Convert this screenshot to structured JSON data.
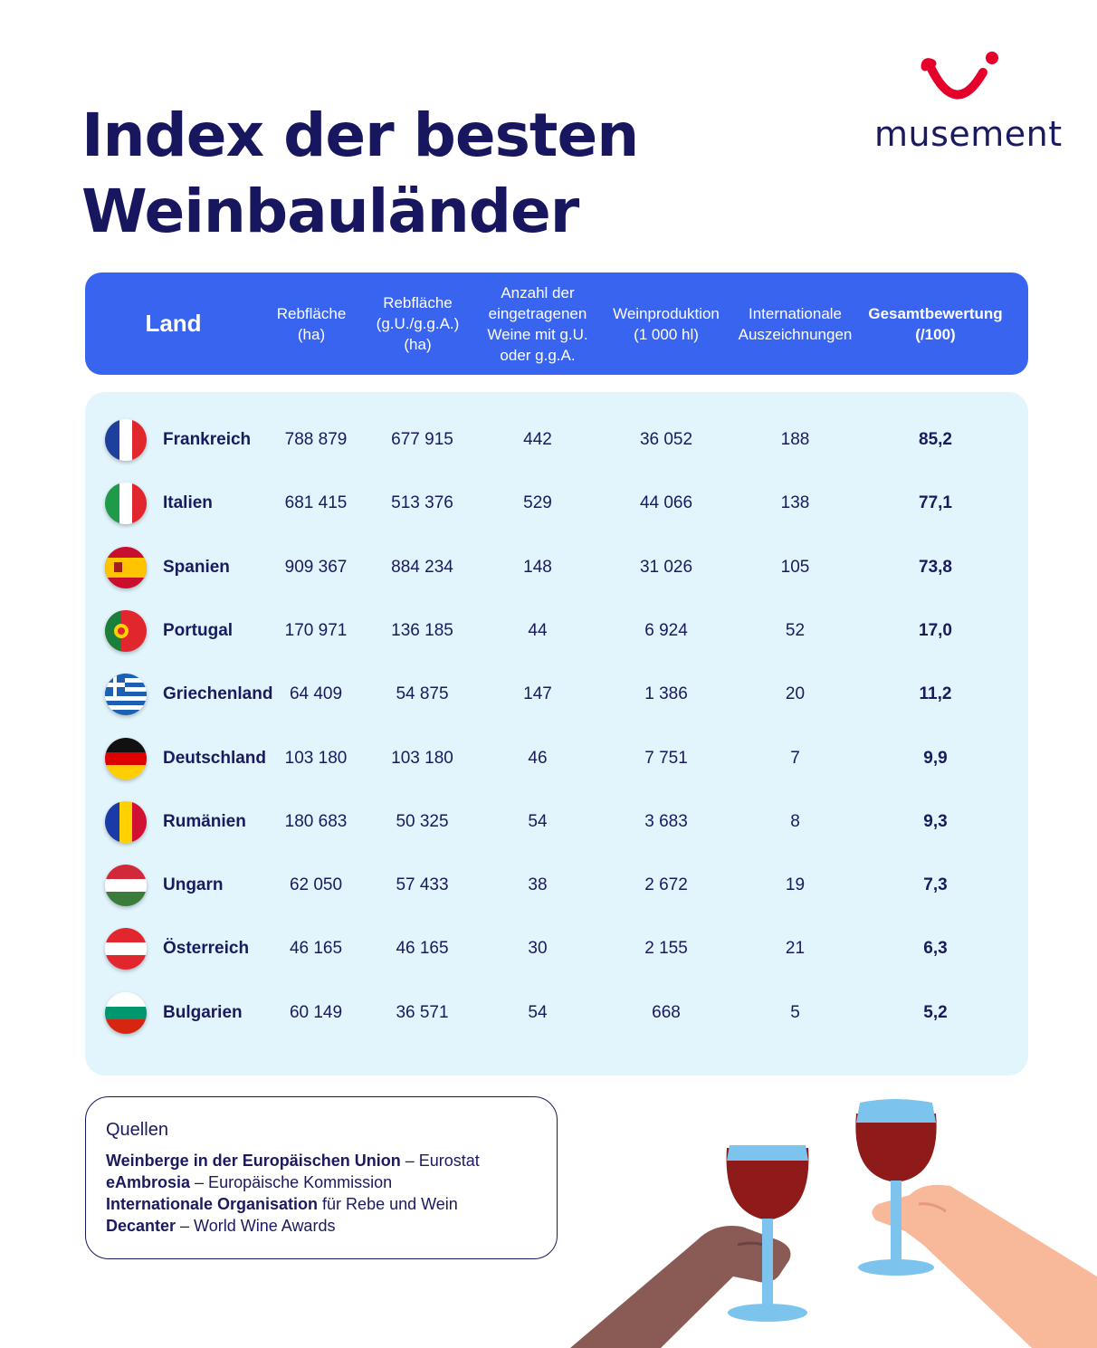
{
  "title": {
    "line1": "Index der besten",
    "line2": "Weinbauländer"
  },
  "logo": {
    "text": "musement",
    "colors": {
      "mark": "#e4002b",
      "text": "#1a1a5e"
    }
  },
  "columns": {
    "land": "Land",
    "area": "Rebfläche\n(ha)",
    "area_pdo": "Rebfläche\n(g.U./g.g.A.)\n(ha)",
    "wines": "Anzahl der\neingetragenen\nWeine mit g.U.\noder g.g.A.",
    "production": "Weinproduktion\n(1 000 hl)",
    "awards": "Internationale\nAuszeichnungen",
    "score": "Gesamtbewertung\n(/100)"
  },
  "rows": [
    {
      "country": "Frankreich",
      "flag": "france-flag",
      "area": "788 879",
      "area_pdo": "677 915",
      "wines": "442",
      "production": "36 052",
      "awards": "188",
      "score": "85,2"
    },
    {
      "country": "Italien",
      "flag": "italy-flag",
      "area": "681 415",
      "area_pdo": "513 376",
      "wines": "529",
      "production": "44 066",
      "awards": "138",
      "score": "77,1"
    },
    {
      "country": "Spanien",
      "flag": "spain-flag",
      "area": "909 367",
      "area_pdo": "884 234",
      "wines": "148",
      "production": "31 026",
      "awards": "105",
      "score": "73,8"
    },
    {
      "country": "Portugal",
      "flag": "portugal-flag",
      "area": "170 971",
      "area_pdo": "136 185",
      "wines": "44",
      "production": "6 924",
      "awards": "52",
      "score": "17,0"
    },
    {
      "country": "Griechenland",
      "flag": "greece-flag",
      "area": "64 409",
      "area_pdo": "54 875",
      "wines": "147",
      "production": "1 386",
      "awards": "20",
      "score": "11,2"
    },
    {
      "country": "Deutschland",
      "flag": "germany-flag",
      "area": "103 180",
      "area_pdo": "103 180",
      "wines": "46",
      "production": "7 751",
      "awards": "7",
      "score": "9,9"
    },
    {
      "country": "Rumänien",
      "flag": "romania-flag",
      "area": "180 683",
      "area_pdo": "50 325",
      "wines": "54",
      "production": "3 683",
      "awards": "8",
      "score": "9,3"
    },
    {
      "country": "Ungarn",
      "flag": "hungary-flag",
      "area": "62 050",
      "area_pdo": "57 433",
      "wines": "38",
      "production": "2 672",
      "awards": "19",
      "score": "7,3"
    },
    {
      "country": "Österreich",
      "flag": "austria-flag",
      "area": "46 165",
      "area_pdo": "46 165",
      "wines": "30",
      "production": "2 155",
      "awards": "21",
      "score": "6,3"
    },
    {
      "country": "Bulgarien",
      "flag": "bulgaria-flag",
      "area": "60 149",
      "area_pdo": "36 571",
      "wines": "54",
      "production": "668",
      "awards": "5",
      "score": "5,2"
    }
  ],
  "sources": {
    "heading": "Quellen",
    "items": [
      {
        "bold": "Weinberge in der Europäischen Union",
        "rest": " – Eurostat"
      },
      {
        "bold": "eAmbrosia",
        "rest": " – Europäische Kommission"
      },
      {
        "bold": "Internationale Organisation",
        "rest": " für Rebe und Wein"
      },
      {
        "bold": "Decanter",
        "rest": " – World Wine Awards"
      }
    ]
  },
  "colors": {
    "header_bg": "#3864f0",
    "body_bg": "#e2f4fc",
    "text": "#1a1a5e",
    "wine": "#8e1a1a",
    "glass": "#7cc3ee"
  }
}
